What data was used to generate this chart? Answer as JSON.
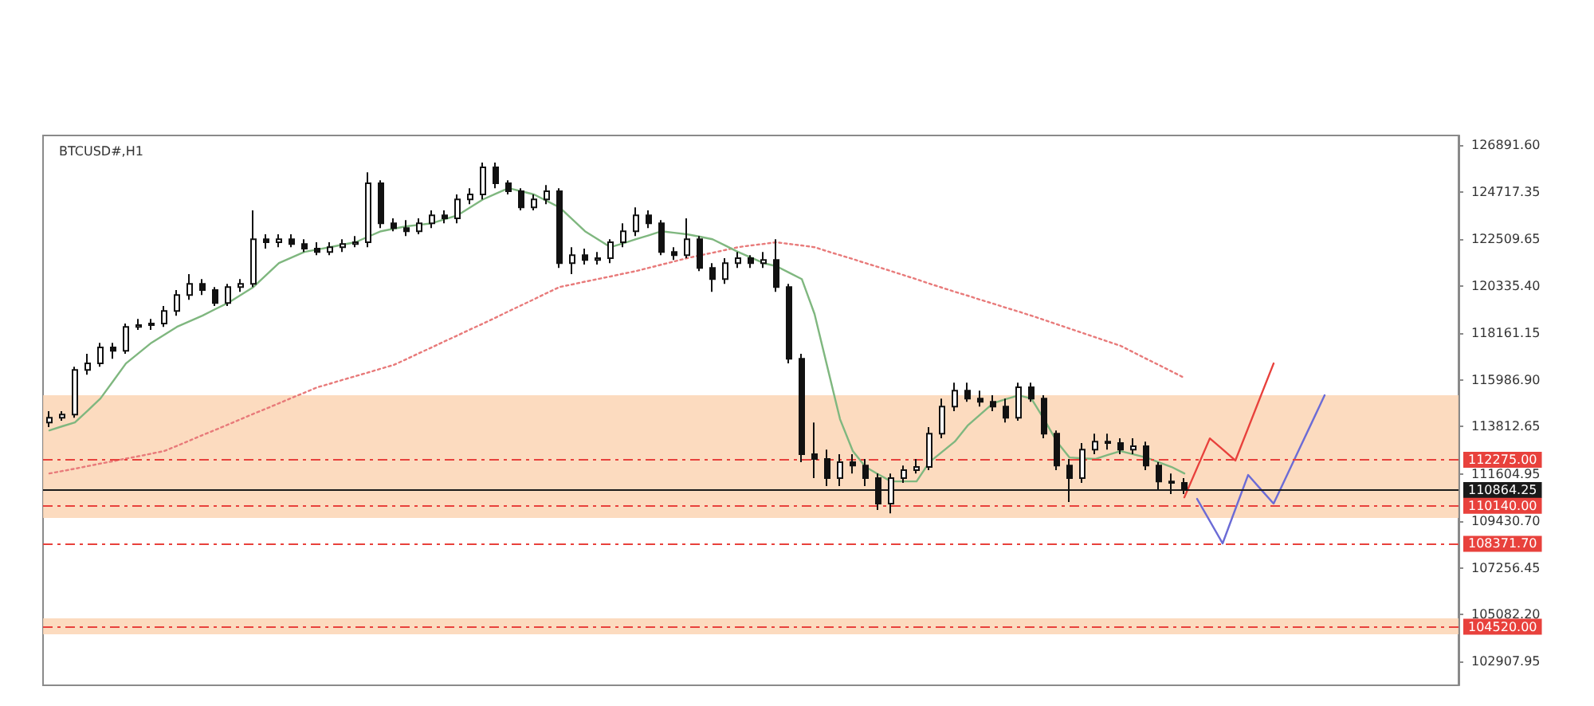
{
  "chart_data": {
    "type": "candlestick",
    "title": "BTCUSD#,H1",
    "categories": [
      null,
      null,
      null,
      null,
      null,
      null,
      null,
      null,
      null,
      null,
      null,
      null,
      null,
      null,
      null,
      null,
      null,
      null,
      null,
      null,
      null,
      null,
      null,
      null,
      null,
      null,
      null,
      null,
      null,
      null,
      null,
      null,
      null,
      null,
      null,
      null,
      null,
      null,
      null,
      null,
      null,
      null,
      null,
      null,
      null,
      null,
      null,
      null,
      null,
      null,
      null,
      null,
      null,
      null,
      null,
      null,
      null,
      null,
      null,
      null,
      null,
      null,
      null,
      null,
      null,
      null,
      null,
      null,
      null,
      null,
      null,
      null,
      null,
      null,
      null,
      null,
      null,
      null,
      null,
      null,
      null,
      null,
      null,
      null,
      null,
      null,
      null,
      null,
      null,
      null,
      null,
      null,
      null,
      null,
      null,
      null,
      null,
      null,
      null,
      null,
      null,
      null,
      null,
      null,
      null,
      null,
      null,
      null,
      null,
      null,
      null
    ],
    "ylim": [
      101800,
      127340
    ],
    "yticks": [
      {
        "value": 102907.95,
        "label": "102907.95"
      },
      {
        "value": 105082.2,
        "label": "105082.20"
      },
      {
        "value": 107256.45,
        "label": "107256.45"
      },
      {
        "value": 109430.7,
        "label": "109430.70"
      },
      {
        "value": 111604.95,
        "label": "111604.95"
      },
      {
        "value": 113812.65,
        "label": "113812.65"
      },
      {
        "value": 115986.9,
        "label": "115986.90"
      },
      {
        "value": 118161.15,
        "label": "118161.15"
      },
      {
        "value": 120335.4,
        "label": "120335.40"
      },
      {
        "value": 122509.65,
        "label": "122509.65"
      },
      {
        "value": 124717.35,
        "label": "124717.35"
      },
      {
        "value": 126891.6,
        "label": "126891.60"
      }
    ],
    "tick_labels": "y",
    "grid": false,
    "series": [
      {
        "type": "line",
        "color": "#e87a7a",
        "line_style": "dotted",
        "values": [
          111640,
          111750,
          111860,
          111980,
          112100,
          112210,
          112330,
          112440,
          112560,
          112680,
          112920,
          113170,
          113420,
          113660,
          113910,
          114160,
          114410,
          114650,
          114900,
          115150,
          115390,
          115640,
          115810,
          115990,
          116160,
          116330,
          116510,
          116680,
          116950,
          117230,
          117500,
          117780,
          118050,
          118330,
          118600,
          118880,
          119170,
          119450,
          119730,
          120020,
          120300,
          120420,
          120550,
          120670,
          120790,
          120920,
          121040,
          121190,
          121340,
          121490,
          121640,
          121770,
          121890,
          122020,
          122150,
          122230,
          122300,
          122380,
          122300,
          122230,
          122150,
          121960,
          121780,
          121600,
          121410,
          121230,
          121040,
          120850,
          120660,
          120460,
          120270,
          120080,
          119900,
          119710,
          119530,
          119340,
          119160,
          118970,
          118770,
          118570,
          118370,
          118170,
          117970,
          117770,
          117570,
          117270,
          116970,
          116680,
          116380,
          116080,
          null,
          null,
          null,
          null,
          null,
          null,
          null,
          null,
          null,
          null,
          null,
          null,
          null,
          null,
          null,
          null,
          null,
          null,
          null,
          null,
          null
        ]
      },
      {
        "type": "line",
        "color": "#7fb77f",
        "line_style": "solid",
        "values": [
          113640,
          113830,
          114010,
          114560,
          115120,
          115930,
          116750,
          117230,
          117710,
          118080,
          118450,
          118710,
          118970,
          119270,
          119560,
          119930,
          120300,
          120860,
          121410,
          121670,
          121930,
          122040,
          122150,
          122270,
          122380,
          122640,
          122890,
          123010,
          123120,
          123190,
          123260,
          123450,
          123630,
          124000,
          124370,
          124630,
          124890,
          124750,
          124600,
          124300,
          124000,
          123450,
          122890,
          122520,
          122150,
          122330,
          122520,
          122700,
          122890,
          122820,
          122750,
          122640,
          122520,
          122230,
          121930,
          121670,
          121410,
          121270,
          120970,
          120670,
          119050,
          116600,
          114160,
          112680,
          111940,
          111600,
          111270,
          111270,
          111270,
          112160,
          112640,
          113120,
          113860,
          114380,
          114900,
          115090,
          115270,
          115120,
          114160,
          113120,
          112380,
          112340,
          112310,
          112500,
          112680,
          112530,
          112380,
          112160,
          111940,
          111640,
          null,
          null,
          null,
          null,
          null,
          null,
          null,
          null,
          null,
          null,
          null,
          null,
          null,
          null,
          null,
          null,
          null,
          null,
          null,
          null,
          null
        ]
      },
      {
        "type": "line",
        "color": "#e8413c",
        "line_style": "solid",
        "values": [
          null,
          null,
          null,
          null,
          null,
          null,
          null,
          null,
          null,
          null,
          null,
          null,
          null,
          null,
          null,
          null,
          null,
          null,
          null,
          null,
          null,
          null,
          null,
          null,
          null,
          null,
          null,
          null,
          null,
          null,
          null,
          null,
          null,
          null,
          null,
          null,
          null,
          null,
          null,
          null,
          null,
          null,
          null,
          null,
          null,
          null,
          null,
          null,
          null,
          null,
          null,
          null,
          null,
          null,
          null,
          null,
          null,
          null,
          null,
          null,
          null,
          null,
          null,
          null,
          null,
          null,
          null,
          null,
          null,
          null,
          null,
          null,
          null,
          null,
          null,
          null,
          null,
          null,
          null,
          null,
          null,
          null,
          null,
          null,
          null,
          null,
          null,
          null,
          null,
          110530,
          111900,
          113270,
          112760,
          112240,
          113740,
          115250,
          116750,
          null,
          null,
          null,
          null,
          null,
          null,
          null,
          null,
          null,
          null,
          null,
          null,
          null,
          null
        ]
      },
      {
        "type": "line",
        "color": "#6b6bd6",
        "line_style": "solid",
        "values": [
          null,
          null,
          null,
          null,
          null,
          null,
          null,
          null,
          null,
          null,
          null,
          null,
          null,
          null,
          null,
          null,
          null,
          null,
          null,
          null,
          null,
          null,
          null,
          null,
          null,
          null,
          null,
          null,
          null,
          null,
          null,
          null,
          null,
          null,
          null,
          null,
          null,
          null,
          null,
          null,
          null,
          null,
          null,
          null,
          null,
          null,
          null,
          null,
          null,
          null,
          null,
          null,
          null,
          null,
          null,
          null,
          null,
          null,
          null,
          null,
          null,
          null,
          null,
          null,
          null,
          null,
          null,
          null,
          null,
          null,
          null,
          null,
          null,
          null,
          null,
          null,
          null,
          null,
          null,
          null,
          null,
          null,
          null,
          null,
          null,
          null,
          null,
          null,
          null,
          null,
          110460,
          109430,
          108390,
          109980,
          111570,
          110900,
          110240,
          111500,
          112760,
          114010,
          115270,
          null,
          null,
          null,
          null,
          null,
          null,
          null,
          null,
          null,
          null
        ]
      },
      {
        "color": "#111111",
        "ohlc": [
          [
            114010,
            114530,
            113790,
            114230
          ],
          [
            114230,
            114530,
            114090,
            114380
          ],
          [
            114380,
            116600,
            114230,
            116450
          ],
          [
            116450,
            117200,
            116230,
            116750
          ],
          [
            116750,
            117710,
            116600,
            117490
          ],
          [
            117490,
            117710,
            116970,
            117340
          ],
          [
            117340,
            118600,
            117200,
            118450
          ],
          [
            118450,
            118820,
            118310,
            118530
          ],
          [
            118530,
            118820,
            118310,
            118600
          ],
          [
            118600,
            119420,
            118450,
            119190
          ],
          [
            119190,
            120160,
            118970,
            119930
          ],
          [
            119930,
            120900,
            119710,
            120450
          ],
          [
            120450,
            120670,
            119930,
            120160
          ],
          [
            120160,
            120300,
            119420,
            119560
          ],
          [
            119560,
            120450,
            119420,
            120300
          ],
          [
            120300,
            120670,
            120080,
            120450
          ],
          [
            120450,
            123860,
            120300,
            122520
          ],
          [
            122520,
            122750,
            122080,
            122380
          ],
          [
            122380,
            122750,
            122150,
            122520
          ],
          [
            122520,
            122750,
            122150,
            122300
          ],
          [
            122300,
            122520,
            121930,
            122080
          ],
          [
            122080,
            122380,
            121780,
            121930
          ],
          [
            121930,
            122380,
            121780,
            122150
          ],
          [
            122150,
            122520,
            121930,
            122300
          ],
          [
            122300,
            122670,
            122150,
            122380
          ],
          [
            122380,
            125630,
            122150,
            125120
          ],
          [
            125120,
            125260,
            123040,
            123260
          ],
          [
            123260,
            123490,
            122890,
            123040
          ],
          [
            123040,
            123410,
            122670,
            122890
          ],
          [
            122890,
            123490,
            122750,
            123260
          ],
          [
            123260,
            123860,
            123040,
            123630
          ],
          [
            123630,
            123860,
            123260,
            123490
          ],
          [
            123490,
            124600,
            123260,
            124370
          ],
          [
            124370,
            124890,
            124150,
            124600
          ],
          [
            124600,
            126080,
            124370,
            125860
          ],
          [
            125860,
            126080,
            124890,
            125120
          ],
          [
            125120,
            125260,
            124600,
            124750
          ],
          [
            124750,
            124890,
            123860,
            124000
          ],
          [
            124000,
            124600,
            123860,
            124370
          ],
          [
            124370,
            125040,
            124150,
            124750
          ],
          [
            124750,
            124890,
            121190,
            121410
          ],
          [
            121410,
            122150,
            120900,
            121780
          ],
          [
            121780,
            122080,
            121340,
            121560
          ],
          [
            121560,
            121930,
            121340,
            121640
          ],
          [
            121640,
            122520,
            121410,
            122380
          ],
          [
            122380,
            123260,
            122150,
            122890
          ],
          [
            122890,
            124000,
            122670,
            123630
          ],
          [
            123630,
            123860,
            123040,
            123260
          ],
          [
            123260,
            123410,
            121780,
            121930
          ],
          [
            121930,
            122150,
            121560,
            121780
          ],
          [
            121780,
            123490,
            121640,
            122520
          ],
          [
            122520,
            122670,
            121040,
            121190
          ],
          [
            121190,
            121410,
            120080,
            120670
          ],
          [
            120670,
            121640,
            120450,
            121410
          ],
          [
            121410,
            121930,
            121190,
            121640
          ],
          [
            121640,
            121780,
            121190,
            121410
          ],
          [
            121410,
            121930,
            121190,
            121560
          ],
          [
            121560,
            122520,
            120080,
            120300
          ],
          [
            120300,
            120450,
            116750,
            116970
          ],
          [
            116970,
            117200,
            112160,
            112530
          ],
          [
            112530,
            114010,
            111420,
            112310
          ],
          [
            112310,
            112750,
            111050,
            111420
          ],
          [
            111420,
            112530,
            111050,
            112160
          ],
          [
            112160,
            112530,
            111640,
            112010
          ],
          [
            112010,
            112310,
            111050,
            111420
          ],
          [
            111420,
            111640,
            109940,
            110240
          ],
          [
            110240,
            111640,
            109790,
            111420
          ],
          [
            111420,
            112010,
            111200,
            111790
          ],
          [
            111790,
            112310,
            111640,
            111940
          ],
          [
            111940,
            113790,
            111790,
            113490
          ],
          [
            113490,
            115120,
            113270,
            114750
          ],
          [
            114750,
            115860,
            114530,
            115490
          ],
          [
            115490,
            115860,
            114970,
            115120
          ],
          [
            115120,
            115490,
            114750,
            114970
          ],
          [
            114970,
            115270,
            114530,
            114750
          ],
          [
            114750,
            115120,
            114010,
            114230
          ],
          [
            114230,
            115860,
            114090,
            115640
          ],
          [
            115640,
            115860,
            114970,
            115120
          ],
          [
            115120,
            115270,
            113270,
            113490
          ],
          [
            113490,
            113640,
            111790,
            112010
          ],
          [
            112010,
            112310,
            110310,
            111420
          ],
          [
            111420,
            113050,
            111200,
            112750
          ],
          [
            112750,
            113490,
            112530,
            113120
          ],
          [
            113120,
            113490,
            112750,
            113050
          ],
          [
            113050,
            113270,
            112530,
            112750
          ],
          [
            112750,
            113270,
            112530,
            112900
          ],
          [
            112900,
            113120,
            111790,
            112010
          ],
          [
            112010,
            112160,
            110900,
            111270
          ],
          [
            111270,
            111640,
            110680,
            111200
          ],
          [
            111200,
            111420,
            110680,
            110900
          ],
          null,
          null,
          null,
          null,
          null,
          null,
          null,
          null,
          null,
          null,
          null,
          null,
          null,
          null,
          null,
          null,
          null,
          null,
          null,
          null,
          null
        ]
      }
    ],
    "bands": [
      {
        "axis": "y",
        "from": 109570,
        "to": 115270,
        "color": "#fcd5b4"
      },
      {
        "axis": "y",
        "from": 104170,
        "to": 104910,
        "color": "#fcd5b4"
      }
    ],
    "ref_lines": [
      {
        "axis": "y",
        "value": 112275,
        "label": "112275.00",
        "color": "#e8413c",
        "line_style": "dashed"
      },
      {
        "axis": "y",
        "value": 110864.25,
        "label": "110864.25",
        "color": "#1a1a1a",
        "line_style": "solid"
      },
      {
        "axis": "y",
        "value": 110140,
        "label": "110140.00",
        "color": "#e8413c",
        "line_style": "dashed"
      },
      {
        "axis": "y",
        "value": 108371.7,
        "label": "108371.70",
        "color": "#e8413c",
        "line_style": "dashed"
      },
      {
        "axis": "y",
        "value": 104520,
        "label": "104520.00",
        "color": "#e8413c",
        "line_style": "dashed"
      }
    ]
  }
}
